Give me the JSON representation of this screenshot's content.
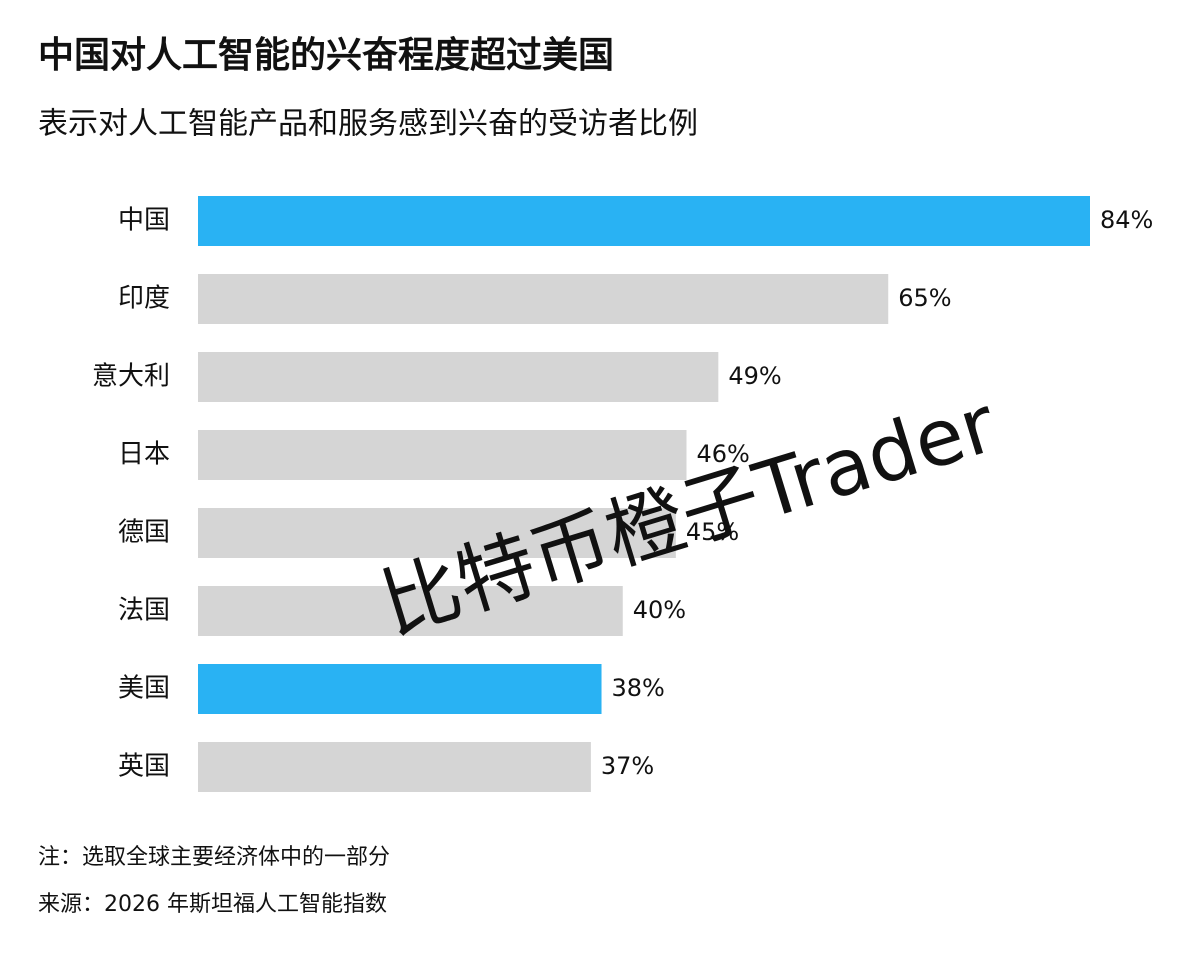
{
  "chart_data": {
    "type": "hbar",
    "title": "中国对人工智能的兴奋程度超过美国",
    "subtitle": "表示对人工智能产品和服务感到兴奋的受访者比例",
    "categories": [
      "中国",
      "印度",
      "意大利",
      "日本",
      "德国",
      "法国",
      "美国",
      "英国"
    ],
    "values": [
      84,
      65,
      49,
      46,
      45,
      40,
      38,
      37
    ],
    "value_labels": [
      "84%",
      "65%",
      "49%",
      "46%",
      "45%",
      "40%",
      "38%",
      "37%"
    ],
    "colors": [
      "#29b2f3",
      "#d5d5d5",
      "#d5d5d5",
      "#d5d5d5",
      "#d5d5d5",
      "#d5d5d5",
      "#29b2f3",
      "#d5d5d5"
    ],
    "notes": [
      "注：选取全球主要经济体中的一部分",
      "来源：2026 年斯坦福人工智能指数"
    ],
    "watermark": "比特币橙子Trader"
  }
}
